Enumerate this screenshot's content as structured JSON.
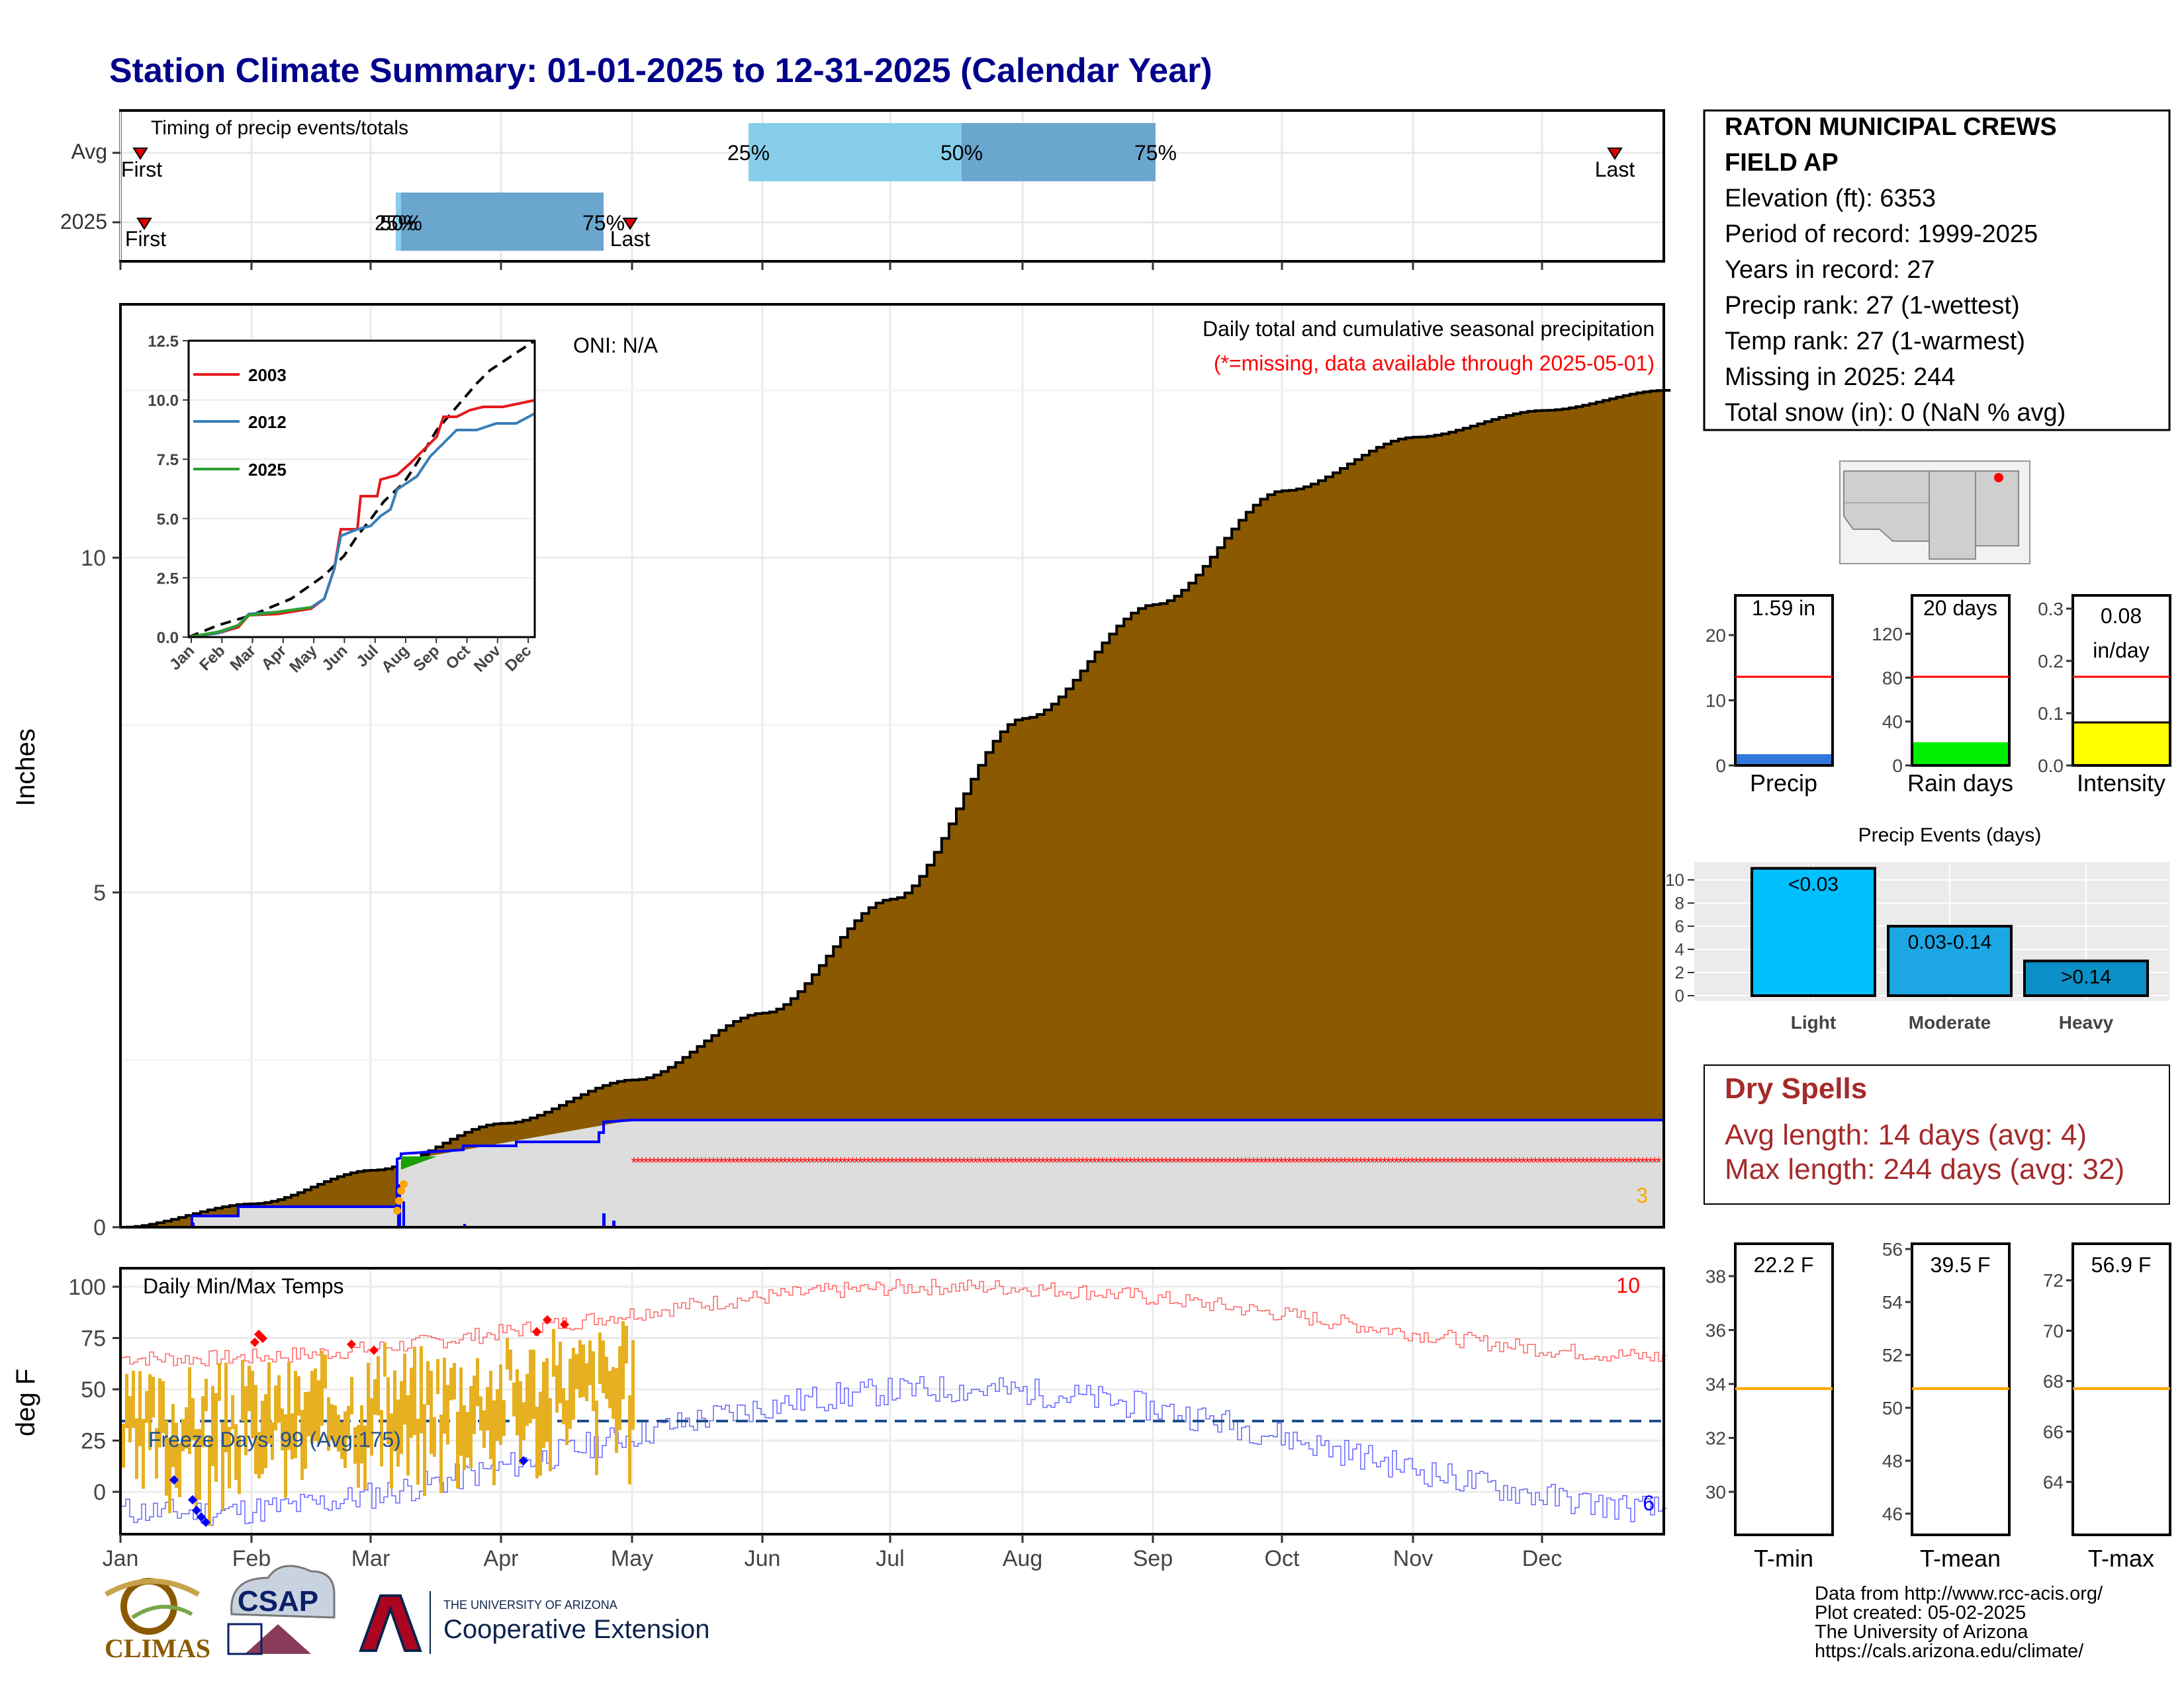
{
  "title": "Station Climate Summary: 01-01-2025 to 12-31-2025 (Calendar Year)",
  "months": [
    "Jan",
    "Feb",
    "Mar",
    "Apr",
    "May",
    "Jun",
    "Jul",
    "Aug",
    "Sep",
    "Oct",
    "Nov",
    "Dec"
  ],
  "colors": {
    "title": "#00008b",
    "cumulative_fill": "#8b5a00",
    "current_line": "#0000ff",
    "missing": "#ff0000",
    "avg_q": "#87ceeb",
    "avg_q2": "#6ba6cf",
    "dry_spells": "#a52a2a",
    "temp_bar": "#e6b020",
    "threshold": "#ff0000",
    "avg_temp": "#ffa500",
    "light": "#00bfff",
    "moderate": "#1ca6e3",
    "heavy": "#0a8fc6"
  },
  "timing_panel": {
    "title": "Timing of precip events/totals",
    "rows": [
      "Avg",
      "2025"
    ],
    "first_label": "First",
    "last_label": "Last",
    "q_labels": [
      "25%",
      "50%",
      "75%"
    ],
    "q2025_label_a": "25%",
    "q2025_label_b": "50%"
  },
  "precip_panel": {
    "y_label": "Inches",
    "onilabel": "ONI: N/A",
    "caption": "Daily total and cumulative seasonal precipitation",
    "missing_note": "(*=missing, data available through 2025-05-01)",
    "corner_count": "3",
    "yticks": [
      "0",
      "5",
      "10"
    ]
  },
  "inset": {
    "yticks": [
      "0.0",
      "2.5",
      "5.0",
      "7.5",
      "10.0",
      "12.5"
    ],
    "months": [
      "Jan",
      "Feb",
      "Mar",
      "Apr",
      "May",
      "Jun",
      "Jul",
      "Aug",
      "Sep",
      "Oct",
      "Nov",
      "Dec"
    ],
    "legend": [
      "2003",
      "2012",
      "2025"
    ]
  },
  "temp_panel": {
    "y_label": "deg F",
    "title": "Daily Min/Max Temps",
    "freeze": "Freeze Days: 99 (Avg:175)",
    "count_hot": "10",
    "count_cold": "6",
    "yticks": [
      "0",
      "25",
      "50",
      "75",
      "100"
    ]
  },
  "station": {
    "name_line1": "RATON MUNICIPAL CREWS",
    "name_line2": "FIELD AP",
    "lines": [
      "Elevation (ft): 6353",
      "Period of record: 1999-2025",
      "Years in record: 27",
      "Precip rank: 27 (1-wettest)",
      "Temp rank: 27 (1-warmest)",
      "Missing in 2025: 244",
      "Total snow (in): 0 (NaN % avg)"
    ]
  },
  "gauges": {
    "precip": {
      "label": "Precip",
      "value_text": "1.59 in",
      "yticks": [
        "0",
        "10",
        "20"
      ]
    },
    "rain_days": {
      "label": "Rain days",
      "value_text": "20 days",
      "yticks": [
        "0",
        "40",
        "80",
        "120"
      ]
    },
    "intensity": {
      "label": "Intensity",
      "value_text1": "0.08",
      "value_text2": "in/day",
      "yticks": [
        "0.0",
        "0.1",
        "0.2",
        "0.3"
      ]
    }
  },
  "events": {
    "title": "Precip Events (days)",
    "categories": [
      "Light",
      "Moderate",
      "Heavy"
    ],
    "bar_labels": [
      "<0.03",
      "0.03-0.14",
      ">0.14"
    ],
    "values": [
      11,
      6,
      3
    ],
    "yticks": [
      "0",
      "2",
      "4",
      "6",
      "8",
      "10"
    ]
  },
  "dry_spells": {
    "title": "Dry Spells",
    "avg": "Avg length: 14 days (avg: 4)",
    "max": "Max length: 244 days (avg: 32)"
  },
  "temp_gauges": {
    "tmin": {
      "label": "T-min",
      "value_text": "22.2 F",
      "yticks": [
        "30",
        "32",
        "34",
        "36",
        "38"
      ]
    },
    "tmean": {
      "label": "T-mean",
      "value_text": "39.5 F",
      "yticks": [
        "46",
        "48",
        "50",
        "52",
        "54",
        "56"
      ]
    },
    "tmax": {
      "label": "T-max",
      "value_text": "56.9 F",
      "yticks": [
        "64",
        "66",
        "68",
        "70",
        "72"
      ]
    }
  },
  "footer": {
    "credits": [
      "Data from http://www.rcc-acis.org/",
      "Plot created: 05-02-2025",
      "The University of Arizona",
      "https://cals.arizona.edu/climate/"
    ],
    "logo_climas": "CLIMAS",
    "logo_csap": "CSAP",
    "logo_ua_small": "THE UNIVERSITY OF ARIZONA",
    "logo_ua_big": "Cooperative Extension"
  },
  "chart_data": {
    "type": "area",
    "title": "Daily total and cumulative seasonal precipitation",
    "ylabel": "Inches",
    "ylim": [
      0,
      12.5
    ],
    "x": [
      "Jan 1",
      "Feb 1",
      "Mar 1",
      "Apr 1",
      "May 1",
      "Jun 1",
      "Jul 1",
      "Aug 1",
      "Sep 1",
      "Oct 1",
      "Nov 1",
      "Dec 1",
      "Dec 31"
    ],
    "series": [
      {
        "values": [
          0.0,
          0.35,
          0.85,
          1.55,
          2.2,
          3.2,
          4.9,
          7.6,
          9.3,
          11.0,
          11.8,
          12.2,
          12.5
        ]
      },
      {
        "name": "2025",
        "values": [
          0.0,
          0.15,
          0.25,
          1.3,
          1.59,
          1.59,
          1.59,
          1.59,
          1.59,
          1.59,
          1.59,
          1.59,
          1.59
        ]
      }
    ]
  }
}
